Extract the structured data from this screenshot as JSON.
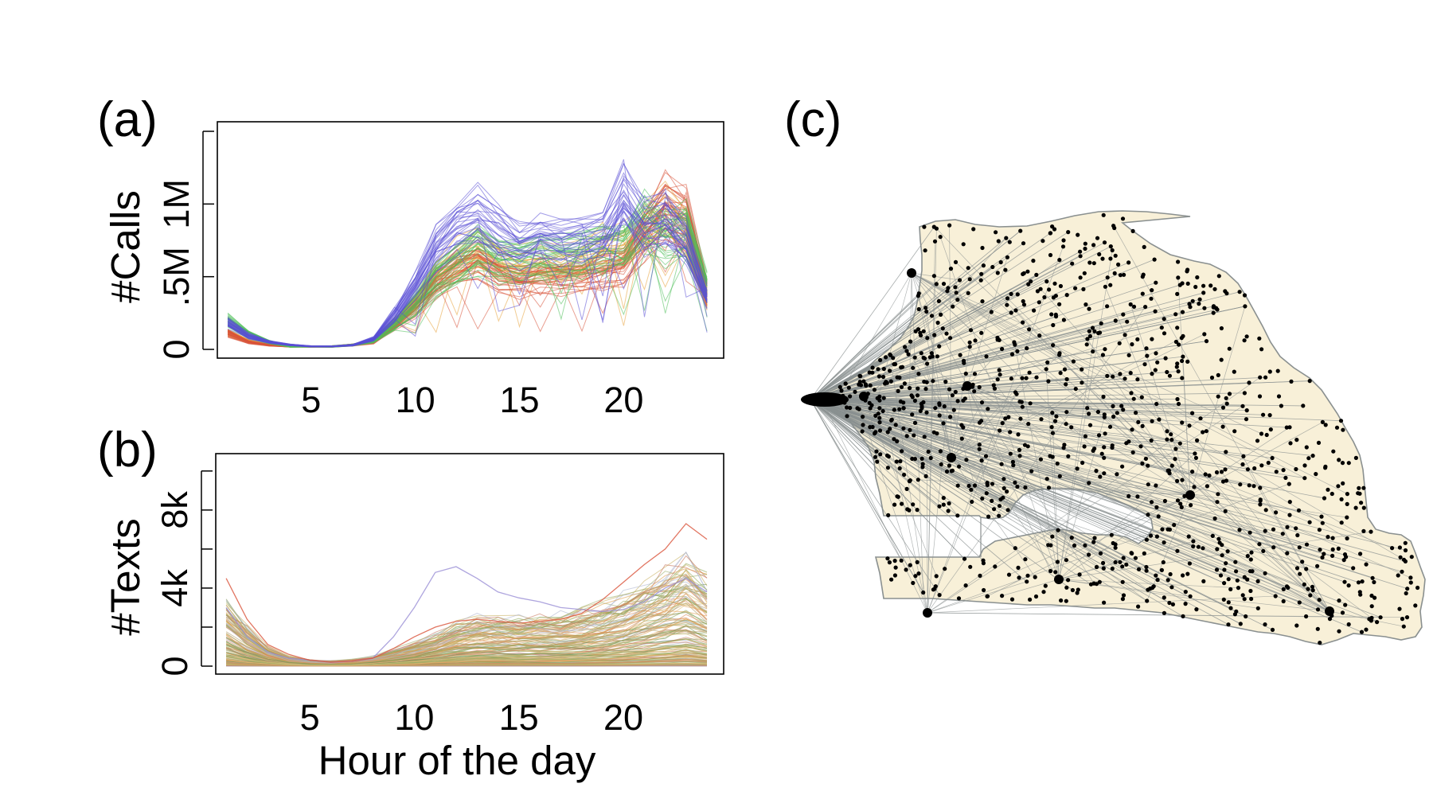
{
  "figure": {
    "panels": {
      "a": "(a)",
      "b": "(b)",
      "c": "(c)"
    }
  },
  "chart_data": [
    {
      "id": "a",
      "type": "line",
      "ylabel": "#Calls",
      "xlim": [
        0.5,
        24.8
      ],
      "ylim": [
        0,
        1500000
      ],
      "x_ticks": [
        5,
        10,
        15,
        20
      ],
      "y_ticks": [
        {
          "value": 0,
          "label": "0"
        },
        {
          "value": 500000,
          "label": ".5M"
        },
        {
          "value": 1000000,
          "label": "1M"
        },
        {
          "value": 1500000,
          "label": ""
        }
      ],
      "x": [
        1,
        2,
        3,
        4,
        5,
        6,
        7,
        8,
        9,
        10,
        11,
        12,
        13,
        14,
        15,
        16,
        17,
        18,
        19,
        20,
        21,
        22,
        23,
        24
      ],
      "line_count": 120,
      "profiles": [
        {
          "color": "#5a4fd6",
          "values": [
            180000,
            90000,
            50000,
            30000,
            20000,
            20000,
            30000,
            70000,
            230000,
            430000,
            700000,
            850000,
            900000,
            800000,
            700000,
            760000,
            730000,
            760000,
            780000,
            1050000,
            820000,
            880000,
            720000,
            350000
          ]
        },
        {
          "color": "#e8a23a",
          "values": [
            120000,
            60000,
            30000,
            20000,
            20000,
            20000,
            30000,
            60000,
            180000,
            330000,
            520000,
            620000,
            700000,
            620000,
            580000,
            600000,
            580000,
            620000,
            700000,
            720000,
            860000,
            950000,
            820000,
            350000
          ]
        },
        {
          "color": "#4fbf5a",
          "values": [
            200000,
            100000,
            50000,
            20000,
            20000,
            20000,
            30000,
            60000,
            170000,
            310000,
            470000,
            570000,
            680000,
            600000,
            600000,
            620000,
            640000,
            640000,
            700000,
            690000,
            880000,
            760000,
            820000,
            420000
          ]
        },
        {
          "color": "#d9533a",
          "values": [
            110000,
            50000,
            30000,
            20000,
            20000,
            20000,
            30000,
            50000,
            160000,
            290000,
            440000,
            540000,
            600000,
            500000,
            460000,
            500000,
            480000,
            490000,
            520000,
            560000,
            780000,
            980000,
            900000,
            380000
          ]
        }
      ]
    },
    {
      "id": "b",
      "type": "line",
      "ylabel": "#Texts",
      "xlabel": "Hour of the day",
      "xlim": [
        0.5,
        24.8
      ],
      "ylim": [
        0,
        10400
      ],
      "x_ticks": [
        5,
        10,
        15,
        20
      ],
      "y_ticks": [
        {
          "value": 0,
          "label": "0"
        },
        {
          "value": 2000,
          "label": ""
        },
        {
          "value": 4000,
          "label": "4k"
        },
        {
          "value": 6000,
          "label": ""
        },
        {
          "value": 8000,
          "label": "8k"
        },
        {
          "value": 10000,
          "label": ""
        }
      ],
      "x": [
        1,
        2,
        3,
        4,
        5,
        6,
        7,
        8,
        9,
        10,
        11,
        12,
        13,
        14,
        15,
        16,
        17,
        18,
        19,
        20,
        21,
        22,
        23,
        24
      ],
      "line_count": 150,
      "highlight": [
        {
          "color": "#9a8fd6",
          "values": [
            3000,
            1500,
            700,
            400,
            300,
            200,
            250,
            400,
            1500,
            3000,
            4800,
            5100,
            4500,
            3800,
            3500,
            3300,
            3000,
            2900,
            2800,
            2900,
            3300,
            4000,
            4500,
            3800
          ]
        },
        {
          "color": "#d9533a",
          "values": [
            4500,
            2400,
            1100,
            600,
            300,
            200,
            250,
            400,
            900,
            1500,
            2000,
            2300,
            2400,
            2300,
            2200,
            2300,
            2400,
            2700,
            3400,
            4300,
            5200,
            6000,
            7300,
            6500
          ]
        }
      ],
      "palette": [
        "#e0a050",
        "#c8b060",
        "#8fa858",
        "#b6a070",
        "#d98c5a",
        "#a0b070",
        "#e6c280",
        "#7a9a5a",
        "#c97a60",
        "#b0b8d0"
      ]
    },
    {
      "id": "c",
      "type": "map",
      "land_color": "#f8f0d8",
      "edge_color": "#8a9090",
      "node_color": "#000000"
    }
  ]
}
